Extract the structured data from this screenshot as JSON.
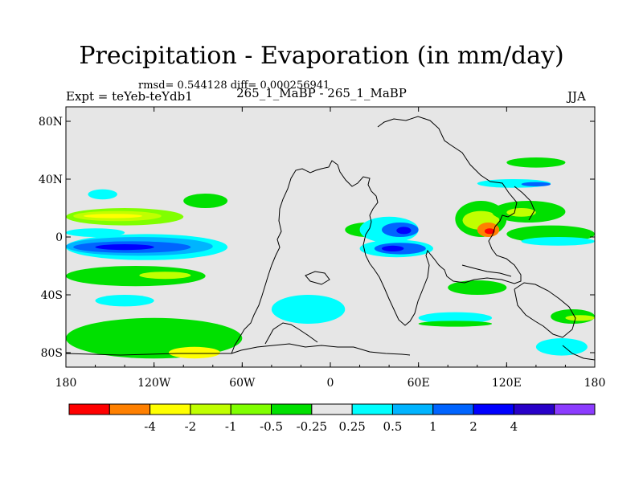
{
  "header": {
    "title": "Precipitation - Evaporation (in mm/day)",
    "stats": "rmsd= 0.544128 diff= 0.000256941",
    "expt": "Expt = teYeb-teYdb1",
    "case": "265_1_MaBP - 265_1_MaBP",
    "season": "JJA"
  },
  "chart_data": {
    "type": "heatmap",
    "title": "Precipitation - Evaporation (in mm/day)",
    "subtitle": "265_1_MaBP - 265_1_MaBP",
    "xlabel": "",
    "ylabel": "",
    "xlim": [
      -180,
      180
    ],
    "ylim": [
      -90,
      90
    ],
    "x_ticks": [
      {
        "value": -180,
        "label": "180"
      },
      {
        "value": -120,
        "label": "120W"
      },
      {
        "value": -60,
        "label": "60W"
      },
      {
        "value": 0,
        "label": "0"
      },
      {
        "value": 60,
        "label": "60E"
      },
      {
        "value": 120,
        "label": "120E"
      },
      {
        "value": 180,
        "label": "180"
      }
    ],
    "y_ticks": [
      {
        "value": 80,
        "label": "80N"
      },
      {
        "value": 40,
        "label": "40N"
      },
      {
        "value": 0,
        "label": "0"
      },
      {
        "value": -40,
        "label": "40S"
      },
      {
        "value": -80,
        "label": "80S"
      }
    ],
    "colorbar": {
      "colors": [
        "#ff0000",
        "#ff8000",
        "#ffff00",
        "#c0ff00",
        "#80ff00",
        "#00e000",
        "#e6e6e6",
        "#00ffff",
        "#00b4ff",
        "#0064ff",
        "#0000ff",
        "#2800c8",
        "#8c3cff"
      ],
      "labels": [
        "-4",
        "-2",
        "-1",
        "-0.5",
        "-0.25",
        "0.25",
        "0.5",
        "1",
        "2",
        "4"
      ]
    },
    "regions": [
      {
        "name": "pacific-north-band",
        "lon": [
          -180,
          -100
        ],
        "lat": [
          20,
          8
        ],
        "level": 4
      },
      {
        "name": "pacific-north-band-inner",
        "lon": [
          -175,
          -115
        ],
        "lat": [
          18,
          11
        ],
        "level": 3
      },
      {
        "name": "pacific-north-band-core",
        "lon": [
          -168,
          -128
        ],
        "lat": [
          16,
          13
        ],
        "level": 2
      },
      {
        "name": "pacific-north-cyan",
        "lon": [
          -180,
          -140
        ],
        "lat": [
          6,
          0
        ],
        "level": 7
      },
      {
        "name": "pacific-equatorial-cyan",
        "lon": [
          -180,
          -70
        ],
        "lat": [
          2,
          -16
        ],
        "level": 7
      },
      {
        "name": "pacific-equatorial-lightblue",
        "lon": [
          -180,
          -80
        ],
        "lat": [
          0,
          -13
        ],
        "level": 8
      },
      {
        "name": "pacific-equatorial-blue",
        "lon": [
          -175,
          -95
        ],
        "lat": [
          -3,
          -11
        ],
        "level": 9
      },
      {
        "name": "pacific-equatorial-darkblue",
        "lon": [
          -160,
          -120
        ],
        "lat": [
          -5,
          -9
        ],
        "level": 10
      },
      {
        "name": "pacific-south-green",
        "lon": [
          -180,
          -85
        ],
        "lat": [
          -20,
          -34
        ],
        "level": 5
      },
      {
        "name": "pacific-south-yellow",
        "lon": [
          -130,
          -95
        ],
        "lat": [
          -24,
          -29
        ],
        "level": 3
      },
      {
        "name": "south-pacific-cyan",
        "lon": [
          -160,
          -120
        ],
        "lat": [
          -40,
          -48
        ],
        "level": 7
      },
      {
        "name": "southern-green",
        "lon": [
          -180,
          -60
        ],
        "lat": [
          -56,
          -84
        ],
        "level": 5
      },
      {
        "name": "southern-yellow",
        "lon": [
          -110,
          -75
        ],
        "lat": [
          -76,
          -84
        ],
        "level": 2
      },
      {
        "name": "north-pacific-cyan",
        "lon": [
          -165,
          -145
        ],
        "lat": [
          33,
          26
        ],
        "level": 7
      },
      {
        "name": "east-pacific-green",
        "lon": [
          -100,
          -70
        ],
        "lat": [
          30,
          20
        ],
        "level": 5
      },
      {
        "name": "south-atlantic-cyan",
        "lon": [
          -40,
          10
        ],
        "lat": [
          -40,
          -60
        ],
        "level": 7
      },
      {
        "name": "east-atlantic-green",
        "lon": [
          10,
          40
        ],
        "lat": [
          10,
          0
        ],
        "level": 5
      },
      {
        "name": "indian-cyan-north",
        "lon": [
          20,
          60
        ],
        "lat": [
          14,
          -4
        ],
        "level": 7
      },
      {
        "name": "indian-blue-north",
        "lon": [
          35,
          60
        ],
        "lat": [
          10,
          0
        ],
        "level": 9
      },
      {
        "name": "indian-darkblue-north",
        "lon": [
          45,
          55
        ],
        "lat": [
          7,
          2
        ],
        "level": 10
      },
      {
        "name": "indian-cyan-south",
        "lon": [
          20,
          70
        ],
        "lat": [
          -2,
          -14
        ],
        "level": 7
      },
      {
        "name": "indian-blue-south",
        "lon": [
          30,
          65
        ],
        "lat": [
          -4,
          -12
        ],
        "level": 9
      },
      {
        "name": "indian-darkblue-south",
        "lon": [
          35,
          50
        ],
        "lat": [
          -6,
          -10
        ],
        "level": 10
      },
      {
        "name": "india-green",
        "lon": [
          85,
          120
        ],
        "lat": [
          25,
          0
        ],
        "level": 5
      },
      {
        "name": "india-yellow",
        "lon": [
          90,
          115
        ],
        "lat": [
          18,
          5
        ],
        "level": 3
      },
      {
        "name": "india-orange",
        "lon": [
          100,
          115
        ],
        "lat": [
          10,
          0
        ],
        "level": 1
      },
      {
        "name": "india-red",
        "lon": [
          105,
          112
        ],
        "lat": [
          6,
          2
        ],
        "level": 0
      },
      {
        "name": "asia-green",
        "lon": [
          110,
          160
        ],
        "lat": [
          25,
          10
        ],
        "level": 5
      },
      {
        "name": "asia-yellow",
        "lon": [
          120,
          140
        ],
        "lat": [
          20,
          14
        ],
        "level": 3
      },
      {
        "name": "north-cyan-asia",
        "lon": [
          100,
          150
        ],
        "lat": [
          40,
          34
        ],
        "level": 7
      },
      {
        "name": "north-blue-asia",
        "lon": [
          130,
          150
        ],
        "lat": [
          38,
          35
        ],
        "level": 9
      },
      {
        "name": "west-pacific-green",
        "lon": [
          120,
          180
        ],
        "lat": [
          8,
          -4
        ],
        "level": 5
      },
      {
        "name": "west-pacific-cyan",
        "lon": [
          130,
          180
        ],
        "lat": [
          0,
          -6
        ],
        "level": 7
      },
      {
        "name": "sw-pacific-green",
        "lon": [
          150,
          180
        ],
        "lat": [
          -50,
          -60
        ],
        "level": 5
      },
      {
        "name": "sw-pacific-yellow",
        "lon": [
          160,
          180
        ],
        "lat": [
          -54,
          -58
        ],
        "level": 3
      },
      {
        "name": "sw-pacific-cyan",
        "lon": [
          140,
          175
        ],
        "lat": [
          -70,
          -82
        ],
        "level": 7
      },
      {
        "name": "southern-ocean-cyan",
        "lon": [
          60,
          110
        ],
        "lat": [
          -52,
          -60
        ],
        "level": 7
      },
      {
        "name": "southern-ocean-green",
        "lon": [
          60,
          110
        ],
        "lat": [
          -58,
          -62
        ],
        "level": 5
      },
      {
        "name": "sw-indian-green",
        "lon": [
          80,
          120
        ],
        "lat": [
          -30,
          -40
        ],
        "level": 5
      },
      {
        "name": "north-land-green",
        "lon": [
          120,
          160
        ],
        "lat": [
          55,
          48
        ],
        "level": 5
      }
    ]
  }
}
